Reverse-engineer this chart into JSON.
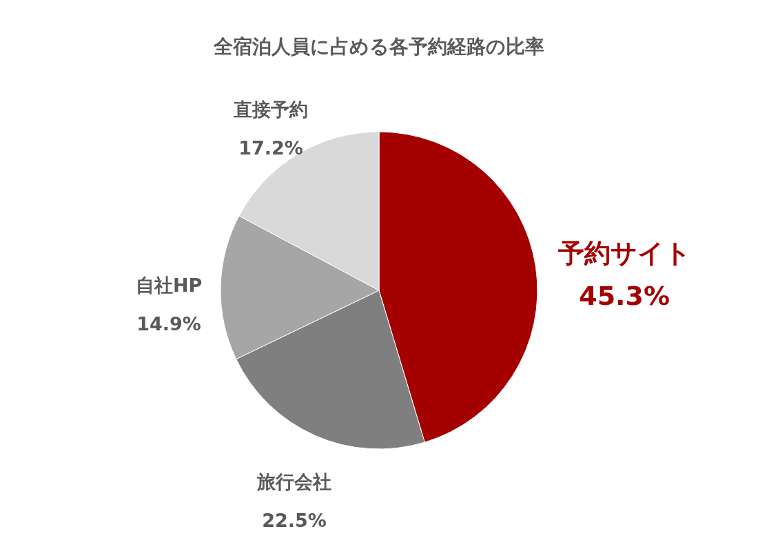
{
  "chart_data": {
    "type": "pie",
    "title": "全宿泊人員に占める各予約経路の比率",
    "categories": [
      "予約サイト",
      "旅行会社",
      "自社HP",
      "直接予約"
    ],
    "values": [
      45.3,
      22.5,
      14.9,
      17.2
    ],
    "value_labels": [
      "45.3%",
      "22.5%",
      "14.9%",
      "17.2%"
    ],
    "colors": [
      "#a50000",
      "#7f7f7f",
      "#a6a6a6",
      "#d9d9d9"
    ],
    "legend": false
  }
}
